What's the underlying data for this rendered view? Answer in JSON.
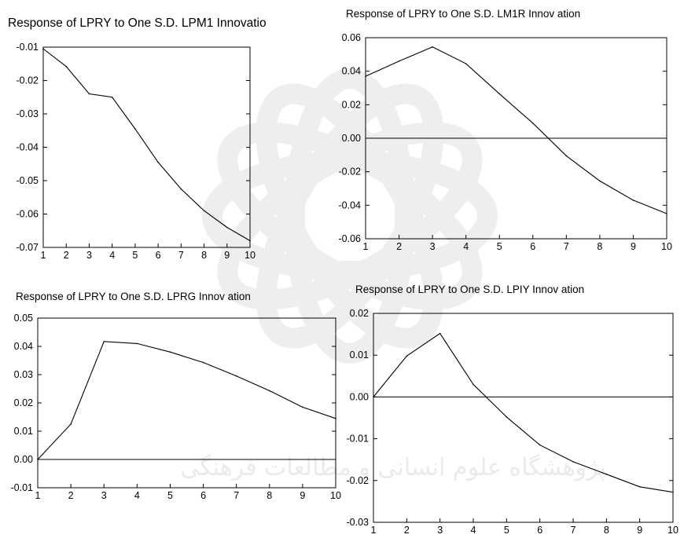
{
  "watermark": {
    "text": "پژوهشگاه علوم انسانی و مطالعات فرهنگی"
  },
  "chart_data": [
    {
      "type": "line",
      "title": "Response of LPRY to One S.D. LPM1 Innovatio",
      "x": [
        1,
        2,
        3,
        4,
        5,
        6,
        7,
        8,
        9,
        10
      ],
      "series": [
        {
          "values": [
            -0.0105,
            -0.0158,
            -0.024,
            -0.025,
            -0.0345,
            -0.0445,
            -0.0525,
            -0.059,
            -0.064,
            -0.068
          ]
        }
      ],
      "ylim": [
        -0.07,
        -0.01
      ],
      "yticks": [
        -0.01,
        -0.02,
        -0.03,
        -0.04,
        -0.05,
        -0.06,
        -0.07
      ],
      "ytick_labels": [
        "-0.01",
        "-0.02",
        "-0.03",
        "-0.04",
        "-0.05",
        "-0.06",
        "-0.07"
      ],
      "xticks": [
        1,
        2,
        3,
        4,
        5,
        6,
        7,
        8,
        9,
        10
      ],
      "zero_line": false,
      "grid": false
    },
    {
      "type": "line",
      "title": "Response of LPRY to One S.D. LM1R Innov ation",
      "x": [
        1,
        2,
        3,
        4,
        5,
        6,
        7,
        8,
        9,
        10
      ],
      "series": [
        {
          "values": [
            0.037,
            0.046,
            0.0545,
            0.0445,
            0.0265,
            0.009,
            -0.0105,
            -0.0255,
            -0.037,
            -0.045
          ]
        }
      ],
      "ylim": [
        -0.06,
        0.06
      ],
      "yticks": [
        0.06,
        0.04,
        0.02,
        0.0,
        -0.02,
        -0.04,
        -0.06
      ],
      "ytick_labels": [
        "0.06",
        "0.04",
        "0.02",
        "0.00",
        "-0.02",
        "-0.04",
        "-0.06"
      ],
      "xticks": [
        1,
        2,
        3,
        4,
        5,
        6,
        7,
        8,
        9,
        10
      ],
      "zero_line": true,
      "grid": false
    },
    {
      "type": "line",
      "title": "Response of LPRY to One S.D. LPRG Innov ation",
      "x": [
        1,
        2,
        3,
        4,
        5,
        6,
        7,
        8,
        9,
        10
      ],
      "series": [
        {
          "values": [
            0.0,
            0.0125,
            0.0417,
            0.041,
            0.038,
            0.0343,
            0.0295,
            0.0243,
            0.0185,
            0.0145
          ]
        }
      ],
      "ylim": [
        -0.01,
        0.05
      ],
      "yticks": [
        0.05,
        0.04,
        0.03,
        0.02,
        0.01,
        0.0,
        -0.01
      ],
      "ytick_labels": [
        "0.05",
        "0.04",
        "0.03",
        "0.02",
        "0.01",
        "0.00",
        "-0.01"
      ],
      "xticks": [
        1,
        2,
        3,
        4,
        5,
        6,
        7,
        8,
        9,
        10
      ],
      "zero_line": true,
      "grid": false
    },
    {
      "type": "line",
      "title": "Response of LPRY to One S.D. LPIY Innov ation",
      "x": [
        1,
        2,
        3,
        4,
        5,
        6,
        7,
        8,
        9,
        10
      ],
      "series": [
        {
          "values": [
            0.0,
            0.0098,
            0.0152,
            0.003,
            -0.0048,
            -0.0115,
            -0.0155,
            -0.0185,
            -0.0215,
            -0.0228
          ]
        }
      ],
      "ylim": [
        -0.03,
        0.02
      ],
      "yticks": [
        0.02,
        0.01,
        0.0,
        -0.01,
        -0.02,
        -0.03
      ],
      "ytick_labels": [
        "0.02",
        "0.01",
        "0.00",
        "-0.01",
        "-0.02",
        "-0.03"
      ],
      "xticks": [
        1,
        2,
        3,
        4,
        5,
        6,
        7,
        8,
        9,
        10
      ],
      "zero_line": true,
      "grid": false
    }
  ]
}
